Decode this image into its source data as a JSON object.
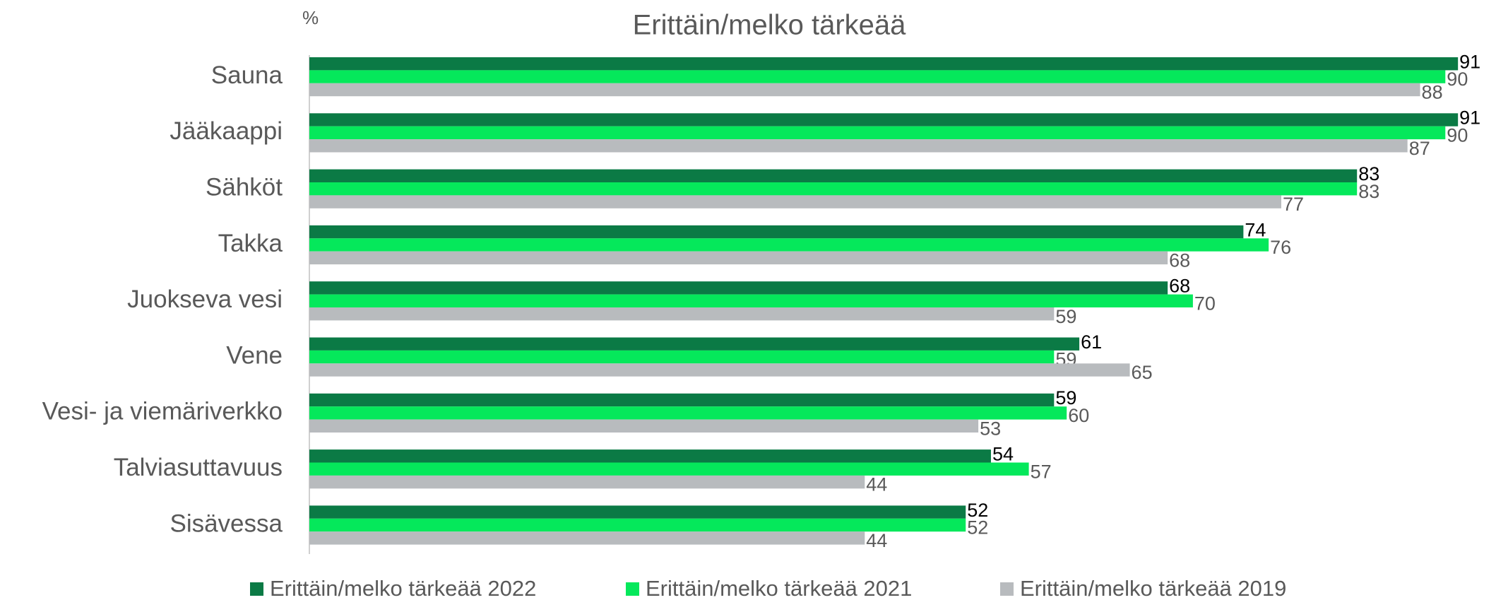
{
  "chart_data": {
    "type": "bar",
    "orientation": "horizontal",
    "title": "Erittäin/melko tärkeää",
    "unit_label": "%",
    "categories": [
      "Sauna",
      "Jääkaappi",
      "Sähköt",
      "Takka",
      "Juokseva vesi",
      "Vene",
      "Vesi- ja viemäriverkko",
      "Talviasuttavuus",
      "Sisävessa"
    ],
    "series": [
      {
        "name": "Erittäin/melko tärkeää 2022",
        "color": "#0b7a45",
        "values": [
          91,
          91,
          83,
          74,
          68,
          61,
          59,
          54,
          52
        ]
      },
      {
        "name": "Erittäin/melko tärkeää 2021",
        "color": "#05e85b",
        "values": [
          90,
          90,
          83,
          76,
          70,
          59,
          60,
          57,
          52
        ]
      },
      {
        "name": "Erittäin/melko tärkeää 2019",
        "color": "#b8bbbe",
        "values": [
          88,
          87,
          77,
          68,
          59,
          65,
          53,
          44,
          44
        ]
      }
    ],
    "xlim": [
      0,
      100
    ]
  }
}
